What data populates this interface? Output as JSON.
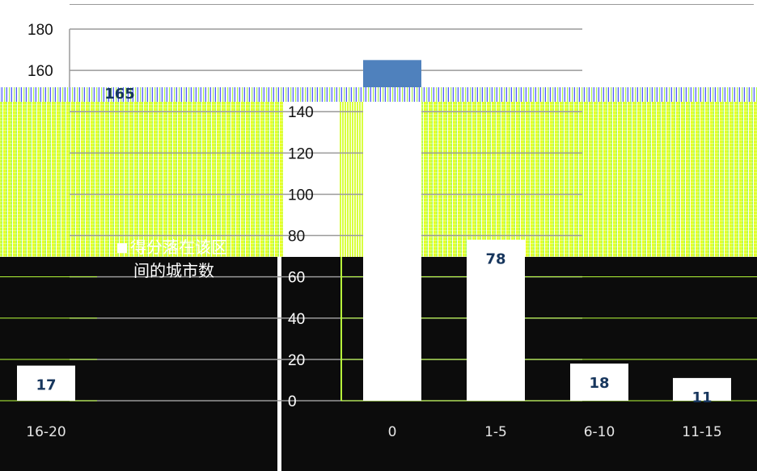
{
  "chart_data": {
    "type": "bar",
    "categories": [
      "16-20",
      "0",
      "1-5",
      "6-10",
      "11-15"
    ],
    "series": [
      {
        "name": "得分落在该区间的城市数",
        "values": [
          17,
          165,
          78,
          18,
          11
        ]
      }
    ],
    "data_labels": [
      "17",
      "165",
      "78",
      "18",
      "11"
    ],
    "y_ticks": [
      "0",
      "20",
      "40",
      "60",
      "80",
      "100",
      "120",
      "140",
      "160",
      "180"
    ],
    "ylim": [
      0,
      180
    ],
    "grid": true,
    "legend_position": "left",
    "colors": {
      "bar": "#ffffff",
      "bar_top": "#4f81bd",
      "grid": "#9a9a9a",
      "label": "#17365d"
    }
  },
  "legend": {
    "line1": "得分落在该区",
    "line2": "间的城市数"
  }
}
